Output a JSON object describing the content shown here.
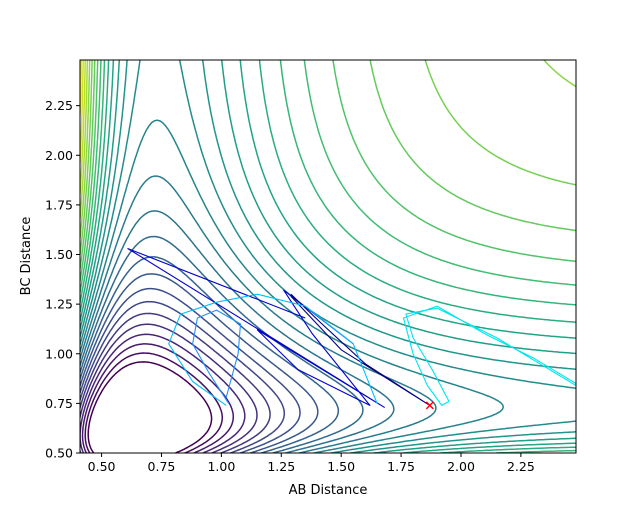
{
  "chart_data": {
    "type": "contour",
    "title": "",
    "xlabel": "AB Distance",
    "ylabel": "BC Distance",
    "xlim": [
      0.41,
      2.48
    ],
    "ylim": [
      0.5,
      2.48
    ],
    "xticks": [
      "0.50",
      "0.75",
      "1.00",
      "1.25",
      "1.50",
      "1.75",
      "2.00",
      "2.25"
    ],
    "yticks": [
      "0.50",
      "0.75",
      "1.00",
      "1.25",
      "1.50",
      "1.75",
      "2.00",
      "2.25"
    ],
    "grid": false,
    "legend": "none",
    "contour_colormap": "viridis",
    "contour_levels": 30,
    "contour_colors": [
      "#440154",
      "#482475",
      "#414487",
      "#355f8d",
      "#2a788e",
      "#21918c",
      "#22a884",
      "#44bf70",
      "#7ad151",
      "#bddf26",
      "#fde725"
    ],
    "trajectories": [
      {
        "color": "#0000cd",
        "points": [
          [
            1.35,
            1.18
          ],
          [
            0.61,
            1.53
          ],
          [
            1.68,
            0.73
          ],
          [
            1.15,
            1.12
          ],
          [
            1.32,
            0.92
          ],
          [
            1.62,
            0.74
          ],
          [
            1.38,
            1.1
          ],
          [
            1.26,
            1.32
          ],
          [
            1.55,
            1.05
          ]
        ]
      },
      {
        "color": "#000080",
        "points": [
          [
            1.29,
            1.3
          ],
          [
            1.42,
            1.15
          ],
          [
            1.6,
            0.95
          ],
          [
            1.87,
            0.74
          ],
          [
            1.5,
            1.02
          ],
          [
            1.29,
            1.29
          ]
        ]
      },
      {
        "color": "#1e90ff",
        "points": [
          [
            1.03,
            0.75
          ],
          [
            0.95,
            0.9
          ],
          [
            0.88,
            1.05
          ],
          [
            0.9,
            1.18
          ],
          [
            0.98,
            1.22
          ],
          [
            1.08,
            1.15
          ],
          [
            1.07,
            1.0
          ],
          [
            1.02,
            0.78
          ]
        ]
      },
      {
        "color": "#00bfff",
        "points": [
          [
            1.02,
            0.74
          ],
          [
            0.88,
            0.86
          ],
          [
            0.78,
            1.05
          ],
          [
            0.83,
            1.2
          ],
          [
            0.98,
            1.26
          ],
          [
            1.15,
            1.3
          ],
          [
            1.35,
            1.24
          ],
          [
            1.55,
            1.05
          ],
          [
            1.65,
            0.75
          ]
        ]
      },
      {
        "color": "#00e5ee",
        "points": [
          [
            2.48,
            0.85
          ],
          [
            2.3,
            0.98
          ],
          [
            2.1,
            1.1
          ],
          [
            1.9,
            1.24
          ],
          [
            1.76,
            1.18
          ],
          [
            1.8,
            1.0
          ],
          [
            1.86,
            0.84
          ],
          [
            1.92,
            0.74
          ],
          [
            1.95,
            0.76
          ],
          [
            1.88,
            0.92
          ],
          [
            1.8,
            1.08
          ],
          [
            1.77,
            1.2
          ],
          [
            1.9,
            1.23
          ],
          [
            2.15,
            1.08
          ],
          [
            2.48,
            0.84
          ]
        ]
      }
    ],
    "markers": [
      {
        "symbol": "x",
        "color": "#ff0000",
        "x": 1.87,
        "y": 0.74
      }
    ]
  }
}
